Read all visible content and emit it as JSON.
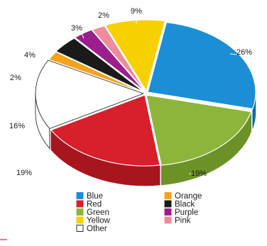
{
  "chart_data": {
    "type": "pie",
    "style": "3d-exploded-pie",
    "slices": [
      {
        "name": "Blue",
        "value": 26,
        "label": "26%",
        "color": "#1b8ed6",
        "side_color": "#0b6ca6"
      },
      {
        "name": "Green",
        "value": 19,
        "label": "19%",
        "color": "#8db53b",
        "side_color": "#6c9227"
      },
      {
        "name": "Red",
        "value": 19,
        "label": "19%",
        "color": "#d7202b",
        "side_color": "#a7161f"
      },
      {
        "name": "Other",
        "value": 16,
        "label": "16%",
        "color": "#ffffff",
        "side_color": "#ffffff"
      },
      {
        "name": "Orange",
        "value": 2,
        "label": "2%",
        "color": "#f5a31b",
        "side_color": "#c67f0d"
      },
      {
        "name": "Black",
        "value": 4,
        "label": "4%",
        "color": "#1a1a1a",
        "side_color": "#000000"
      },
      {
        "name": "Purple",
        "value": 3,
        "label": "3%",
        "color": "#9c1e8c",
        "side_color": "#75136a"
      },
      {
        "name": "Pink",
        "value": 2,
        "label": "2%",
        "color": "#f08a9c",
        "side_color": "#c96b7c"
      },
      {
        "name": "Yellow",
        "value": 9,
        "label": "9%",
        "color": "#f7d000",
        "side_color": "#c9a900"
      }
    ],
    "legend": {
      "placement": "bottom",
      "columns": [
        [
          "Blue",
          "Red",
          "Green",
          "Yellow",
          "Other"
        ],
        [
          "Orange",
          "Black",
          "Purple",
          "Pink"
        ]
      ]
    }
  }
}
